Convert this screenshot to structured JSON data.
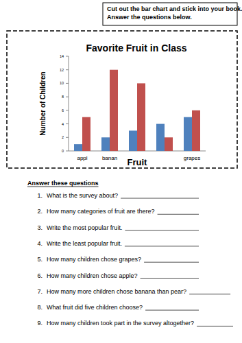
{
  "header": {
    "instructions": [
      "Cut out the bar chart and stick into your book.",
      "Answer the questions below."
    ]
  },
  "chart_data": {
    "type": "bar",
    "title": "Favorite Fruit in Class",
    "x_label": "Fruit",
    "y_label": "Number of Children",
    "categories": [
      "appl",
      "banan",
      null,
      null,
      "grapes"
    ],
    "series": [
      {
        "color": "#4f81bd",
        "values": [
          1,
          2,
          3,
          4,
          5
        ]
      },
      {
        "color": "#c0504d",
        "values": [
          5,
          12,
          10,
          2,
          6
        ]
      }
    ],
    "ylim": [
      0,
      14
    ],
    "yticks": [
      0,
      2,
      4,
      6,
      8,
      10,
      12,
      14
    ],
    "grid": false
  },
  "questions": {
    "heading": "Answer these questions",
    "items": [
      {
        "number": "1.",
        "text": "What is the survey about?"
      },
      {
        "number": "2.",
        "text": "How many categories of fruit are there?"
      },
      {
        "number": "3.",
        "text": "Write the most popular fruit."
      },
      {
        "number": "4.",
        "text": "Write the least popular fruit."
      },
      {
        "number": "5.",
        "text": "How many children chose grapes?"
      },
      {
        "number": "6.",
        "text": "How many children chose apple?"
      },
      {
        "number": "7.",
        "text": "How many more children chose banana than pear?"
      },
      {
        "number": "8.",
        "text": "What fruit did five children choose?"
      },
      {
        "number": "9.",
        "text": "How many children took part in the survey altogether?"
      }
    ]
  }
}
